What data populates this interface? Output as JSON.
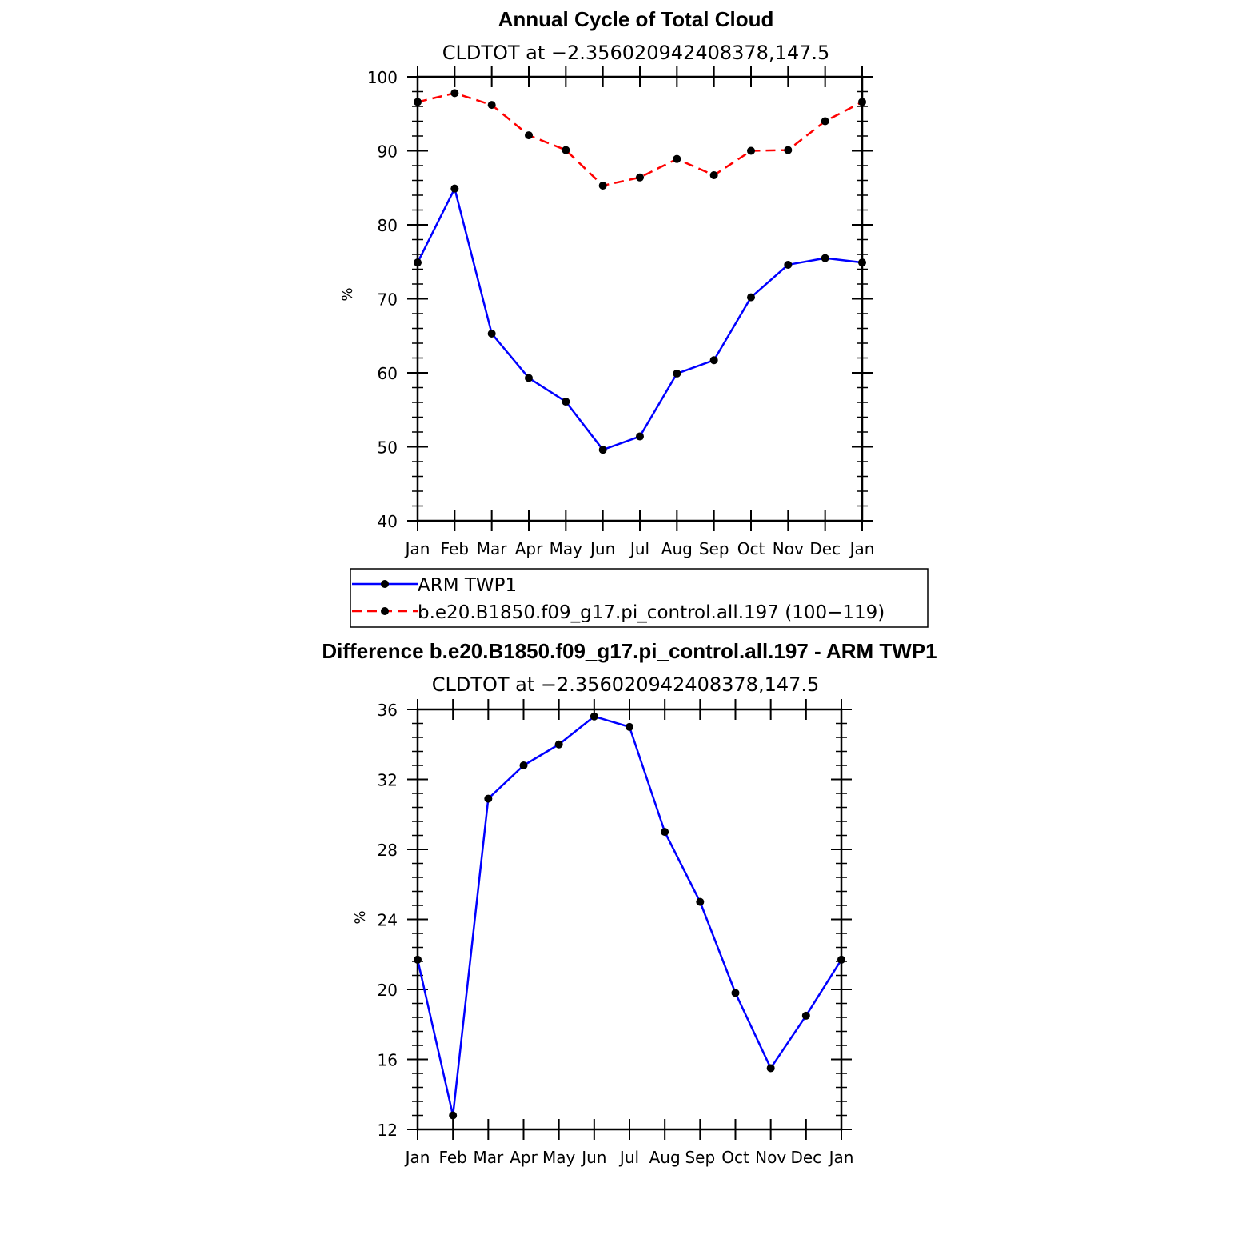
{
  "chart_data": [
    {
      "type": "line",
      "title": "Annual Cycle of Total Cloud",
      "subtitle": "CLDTOT at −2.356020942408378,147.5",
      "ylabel": "%",
      "xlabel": "",
      "ylim": [
        40,
        100
      ],
      "yticks": [
        40,
        50,
        60,
        70,
        80,
        90,
        100
      ],
      "categories": [
        "Jan",
        "Feb",
        "Mar",
        "Apr",
        "May",
        "Jun",
        "Jul",
        "Aug",
        "Sep",
        "Oct",
        "Nov",
        "Dec",
        "Jan"
      ],
      "series": [
        {
          "name": "ARM  TWP1",
          "color": "#0000ff",
          "dash": "solid",
          "values": [
            74.9,
            84.9,
            65.3,
            59.3,
            56.1,
            49.6,
            51.4,
            59.9,
            61.7,
            70.2,
            74.6,
            75.5,
            74.9
          ]
        },
        {
          "name": "b.e20.B1850.f09_g17.pi_control.all.197 (100−119)",
          "color": "#ff0000",
          "dash": "dashed",
          "values": [
            96.6,
            97.8,
            96.2,
            92.1,
            90.1,
            85.3,
            86.4,
            88.9,
            86.7,
            90.0,
            90.1,
            94.0,
            96.6
          ]
        }
      ],
      "legend": "below"
    },
    {
      "type": "line",
      "title": "Difference b.e20.B1850.f09_g17.pi_control.all.197 - ARM TWP1",
      "subtitle": "CLDTOT at −2.356020942408378,147.5",
      "ylabel": "%",
      "xlabel": "",
      "ylim": [
        12,
        36
      ],
      "yticks": [
        12,
        16,
        20,
        24,
        28,
        32,
        36
      ],
      "categories": [
        "Jan",
        "Feb",
        "Mar",
        "Apr",
        "May",
        "Jun",
        "Jul",
        "Aug",
        "Sep",
        "Oct",
        "Nov",
        "Dec",
        "Jan"
      ],
      "series": [
        {
          "name": "difference",
          "color": "#0000ff",
          "dash": "solid",
          "values": [
            21.7,
            12.8,
            30.9,
            32.8,
            34.0,
            35.6,
            35.0,
            29.0,
            25.0,
            19.8,
            15.5,
            18.5,
            21.7
          ]
        }
      ]
    }
  ]
}
